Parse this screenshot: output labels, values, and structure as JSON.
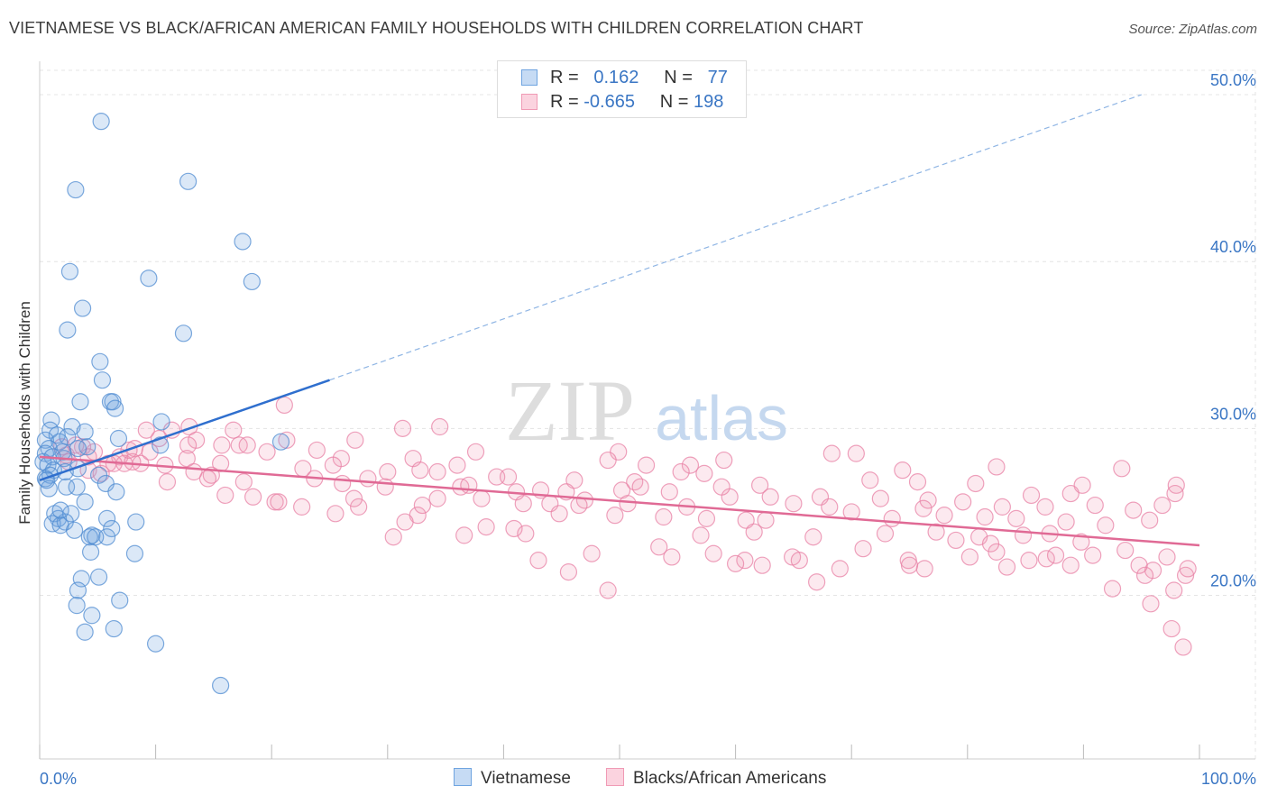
{
  "title": "VIETNAMESE VS BLACK/AFRICAN AMERICAN FAMILY HOUSEHOLDS WITH CHILDREN CORRELATION CHART",
  "source": "Source: ZipAtlas.com",
  "watermark": {
    "zip": "ZIP",
    "atlas": "atlas"
  },
  "legend": {
    "rows": [
      {
        "r_label": "R =",
        "r_value": "0.162",
        "n_label": "N =",
        "n_value": "77",
        "color": "#6fa4e0"
      },
      {
        "r_label": "R =",
        "r_value": "-0.665",
        "n_label": "N =",
        "n_value": "198",
        "color": "#f09ab5"
      }
    ]
  },
  "bottom_legend": {
    "series1": "Vietnamese",
    "series2": "Blacks/African Americans"
  },
  "chart_data": {
    "type": "scatter",
    "ylabel": "Family Households with Children",
    "xlim": [
      0,
      100
    ],
    "ylim": [
      10.2,
      52.0
    ],
    "x_tick_labels": [
      "0.0%",
      "100.0%"
    ],
    "y_ticks": [
      20,
      30,
      40,
      50
    ],
    "y_tick_labels": [
      "20.0%",
      "30.0%",
      "40.0%",
      "50.0%"
    ],
    "grid": true,
    "legend_position": "top-center",
    "colors": {
      "vietnamese": "#6fa4e0",
      "black": "#f09ab5",
      "vietnamese_line": "#2f6fce",
      "black_line": "#e06a95"
    },
    "series": [
      {
        "name": "Vietnamese",
        "trend": {
          "x0": 0,
          "y0": 26.9,
          "x1": 25,
          "y1": 32.9,
          "dashed_to_x": 95,
          "dashed_to_y": 50.0
        },
        "points": [
          [
            5.3,
            48.4
          ],
          [
            3.1,
            44.3
          ],
          [
            12.8,
            44.8
          ],
          [
            17.5,
            41.2
          ],
          [
            2.6,
            39.4
          ],
          [
            9.4,
            39.0
          ],
          [
            18.3,
            38.8
          ],
          [
            3.7,
            37.2
          ],
          [
            2.4,
            35.9
          ],
          [
            12.4,
            35.7
          ],
          [
            5.2,
            34.0
          ],
          [
            5.4,
            32.9
          ],
          [
            3.5,
            31.6
          ],
          [
            6.1,
            31.6
          ],
          [
            6.3,
            31.6
          ],
          [
            6.5,
            31.2
          ],
          [
            1.0,
            30.5
          ],
          [
            10.5,
            30.4
          ],
          [
            2.8,
            30.1
          ],
          [
            0.9,
            29.9
          ],
          [
            3.9,
            29.8
          ],
          [
            1.5,
            29.6
          ],
          [
            2.4,
            29.5
          ],
          [
            6.8,
            29.4
          ],
          [
            0.5,
            29.3
          ],
          [
            1.7,
            29.2
          ],
          [
            10.4,
            29.0
          ],
          [
            20.8,
            29.2
          ],
          [
            4.1,
            28.9
          ],
          [
            0.8,
            28.8
          ],
          [
            3.3,
            28.8
          ],
          [
            2.0,
            28.6
          ],
          [
            0.5,
            28.5
          ],
          [
            1.1,
            28.3
          ],
          [
            2.1,
            28.2
          ],
          [
            0.3,
            28.0
          ],
          [
            0.7,
            27.8
          ],
          [
            3.3,
            27.6
          ],
          [
            1.2,
            27.5
          ],
          [
            2.2,
            27.4
          ],
          [
            5.1,
            27.2
          ],
          [
            0.9,
            27.2
          ],
          [
            0.5,
            27.0
          ],
          [
            5.7,
            26.7
          ],
          [
            2.3,
            26.5
          ],
          [
            3.2,
            26.5
          ],
          [
            6.6,
            26.2
          ],
          [
            0.8,
            26.4
          ],
          [
            3.9,
            25.6
          ],
          [
            1.3,
            24.9
          ],
          [
            2.7,
            24.9
          ],
          [
            5.8,
            24.6
          ],
          [
            1.6,
            24.6
          ],
          [
            1.1,
            24.3
          ],
          [
            2.2,
            24.4
          ],
          [
            8.3,
            24.4
          ],
          [
            1.8,
            24.2
          ],
          [
            6.2,
            24.0
          ],
          [
            3.0,
            23.9
          ],
          [
            4.5,
            23.6
          ],
          [
            4.3,
            23.5
          ],
          [
            5.8,
            23.5
          ],
          [
            4.8,
            23.5
          ],
          [
            4.4,
            22.6
          ],
          [
            8.2,
            22.5
          ],
          [
            5.1,
            21.1
          ],
          [
            3.6,
            21.0
          ],
          [
            3.3,
            20.3
          ],
          [
            6.9,
            19.7
          ],
          [
            3.2,
            19.4
          ],
          [
            4.5,
            18.8
          ],
          [
            3.9,
            17.8
          ],
          [
            6.4,
            18.0
          ],
          [
            10.0,
            17.1
          ],
          [
            15.6,
            14.6
          ],
          [
            1.8,
            25.1
          ],
          [
            0.6,
            26.9
          ]
        ]
      },
      {
        "name": "Blacks/African Americans",
        "trend": {
          "x0": 0,
          "y0": 28.3,
          "x1": 100,
          "y1": 23.0
        },
        "points": [
          [
            12.9,
            30.1
          ],
          [
            11.4,
            29.9
          ],
          [
            9.2,
            29.9
          ],
          [
            16.7,
            29.9
          ],
          [
            34.5,
            30.1
          ],
          [
            13.5,
            29.3
          ],
          [
            10.3,
            29.4
          ],
          [
            21.3,
            29.3
          ],
          [
            27.2,
            29.3
          ],
          [
            15.7,
            29.0
          ],
          [
            17.2,
            29.0
          ],
          [
            17.9,
            29.0
          ],
          [
            12.8,
            29.0
          ],
          [
            8.2,
            28.8
          ],
          [
            3.7,
            28.9
          ],
          [
            4.7,
            28.6
          ],
          [
            19.6,
            28.6
          ],
          [
            23.9,
            28.7
          ],
          [
            37.6,
            28.6
          ],
          [
            49.9,
            28.6
          ],
          [
            68.3,
            28.5
          ],
          [
            70.4,
            28.5
          ],
          [
            2.3,
            28.4
          ],
          [
            4.2,
            28.3
          ],
          [
            6.9,
            28.3
          ],
          [
            12.7,
            28.2
          ],
          [
            26.0,
            28.2
          ],
          [
            32.2,
            28.2
          ],
          [
            49.0,
            28.1
          ],
          [
            59.0,
            28.1
          ],
          [
            2.5,
            28.0
          ],
          [
            7.3,
            27.9
          ],
          [
            8.7,
            27.9
          ],
          [
            15.6,
            27.9
          ],
          [
            25.3,
            27.8
          ],
          [
            36.0,
            27.8
          ],
          [
            52.3,
            27.8
          ],
          [
            56.1,
            27.8
          ],
          [
            82.5,
            27.7
          ],
          [
            93.3,
            27.6
          ],
          [
            4.2,
            27.5
          ],
          [
            13.3,
            27.4
          ],
          [
            30.0,
            27.4
          ],
          [
            32.8,
            27.5
          ],
          [
            34.3,
            27.4
          ],
          [
            55.3,
            27.4
          ],
          [
            57.3,
            27.3
          ],
          [
            74.4,
            27.5
          ],
          [
            5.3,
            27.3
          ],
          [
            14.8,
            27.2
          ],
          [
            23.7,
            27.0
          ],
          [
            28.3,
            27.0
          ],
          [
            39.4,
            27.1
          ],
          [
            40.4,
            27.1
          ],
          [
            46.1,
            26.9
          ],
          [
            51.3,
            26.8
          ],
          [
            62.1,
            26.6
          ],
          [
            71.6,
            26.9
          ],
          [
            75.7,
            26.8
          ],
          [
            80.7,
            26.7
          ],
          [
            89.9,
            26.6
          ],
          [
            98.0,
            26.6
          ],
          [
            11.0,
            26.8
          ],
          [
            17.6,
            26.8
          ],
          [
            26.1,
            26.7
          ],
          [
            29.8,
            26.5
          ],
          [
            36.3,
            26.5
          ],
          [
            37.0,
            26.6
          ],
          [
            41.1,
            26.2
          ],
          [
            43.2,
            26.3
          ],
          [
            45.4,
            26.2
          ],
          [
            50.2,
            26.3
          ],
          [
            54.3,
            26.2
          ],
          [
            59.5,
            25.9
          ],
          [
            63.0,
            25.9
          ],
          [
            67.3,
            25.9
          ],
          [
            72.5,
            25.8
          ],
          [
            76.6,
            25.7
          ],
          [
            85.5,
            26.0
          ],
          [
            88.9,
            26.1
          ],
          [
            97.9,
            26.1
          ],
          [
            20.3,
            25.6
          ],
          [
            22.6,
            25.3
          ],
          [
            27.5,
            25.3
          ],
          [
            34.3,
            25.8
          ],
          [
            38.1,
            25.8
          ],
          [
            41.7,
            25.5
          ],
          [
            44.0,
            25.5
          ],
          [
            47.0,
            25.7
          ],
          [
            50.7,
            25.5
          ],
          [
            55.8,
            25.3
          ],
          [
            65.0,
            25.5
          ],
          [
            68.1,
            25.3
          ],
          [
            76.2,
            25.2
          ],
          [
            79.6,
            25.6
          ],
          [
            83.0,
            25.3
          ],
          [
            86.7,
            25.3
          ],
          [
            91.0,
            25.4
          ],
          [
            94.3,
            25.1
          ],
          [
            96.8,
            25.4
          ],
          [
            25.5,
            24.9
          ],
          [
            32.6,
            24.8
          ],
          [
            44.8,
            24.9
          ],
          [
            49.6,
            24.8
          ],
          [
            53.8,
            24.7
          ],
          [
            57.5,
            24.6
          ],
          [
            60.9,
            24.5
          ],
          [
            62.6,
            24.5
          ],
          [
            73.5,
            24.6
          ],
          [
            78.0,
            24.8
          ],
          [
            81.5,
            24.7
          ],
          [
            84.2,
            24.6
          ],
          [
            88.5,
            24.4
          ],
          [
            91.9,
            24.2
          ],
          [
            95.7,
            24.5
          ],
          [
            38.5,
            24.1
          ],
          [
            40.9,
            24.0
          ],
          [
            57.0,
            23.6
          ],
          [
            61.6,
            23.8
          ],
          [
            66.7,
            23.5
          ],
          [
            72.9,
            23.7
          ],
          [
            77.3,
            23.8
          ],
          [
            81.0,
            23.5
          ],
          [
            84.8,
            23.6
          ],
          [
            87.1,
            23.7
          ],
          [
            89.8,
            23.2
          ],
          [
            30.5,
            23.5
          ],
          [
            41.9,
            23.7
          ],
          [
            71.0,
            22.8
          ],
          [
            82.5,
            22.6
          ],
          [
            90.8,
            22.4
          ],
          [
            93.6,
            22.7
          ],
          [
            54.5,
            22.3
          ],
          [
            60.8,
            22.1
          ],
          [
            64.9,
            22.3
          ],
          [
            74.9,
            22.1
          ],
          [
            80.2,
            22.3
          ],
          [
            86.8,
            22.2
          ],
          [
            97.2,
            22.3
          ],
          [
            47.6,
            22.5
          ],
          [
            58.1,
            22.5
          ],
          [
            62.3,
            21.8
          ],
          [
            69.0,
            21.6
          ],
          [
            76.3,
            21.6
          ],
          [
            83.4,
            21.7
          ],
          [
            88.9,
            21.8
          ],
          [
            96.0,
            21.5
          ],
          [
            43.0,
            22.1
          ],
          [
            65.5,
            22.1
          ],
          [
            95.3,
            21.2
          ],
          [
            98.8,
            21.2
          ],
          [
            67.0,
            20.8
          ],
          [
            45.6,
            21.4
          ],
          [
            49.0,
            20.3
          ],
          [
            99.0,
            21.6
          ],
          [
            97.8,
            20.3
          ],
          [
            95.8,
            19.5
          ],
          [
            97.6,
            18.0
          ],
          [
            98.6,
            16.9
          ],
          [
            58.8,
            26.5
          ],
          [
            14.5,
            27.0
          ],
          [
            31.5,
            24.4
          ],
          [
            33.0,
            25.4
          ],
          [
            16.0,
            26.0
          ],
          [
            18.4,
            25.9
          ],
          [
            22.7,
            27.6
          ],
          [
            27.1,
            25.8
          ],
          [
            9.5,
            28.6
          ],
          [
            1.9,
            28.9
          ],
          [
            3.1,
            29.0
          ],
          [
            6.4,
            27.9
          ],
          [
            8.0,
            28.0
          ],
          [
            20.6,
            25.6
          ],
          [
            7.7,
            28.7
          ],
          [
            36.6,
            23.6
          ],
          [
            53.4,
            22.9
          ],
          [
            46.5,
            25.4
          ],
          [
            51.8,
            26.5
          ],
          [
            70.0,
            25.0
          ],
          [
            75.0,
            21.8
          ],
          [
            79.0,
            23.3
          ],
          [
            82.0,
            23.1
          ],
          [
            85.3,
            22.1
          ],
          [
            87.6,
            22.4
          ],
          [
            92.5,
            20.4
          ],
          [
            94.8,
            21.8
          ],
          [
            5.9,
            27.9
          ],
          [
            21.1,
            31.4
          ],
          [
            31.3,
            30.0
          ],
          [
            10.8,
            27.8
          ],
          [
            60.0,
            21.9
          ]
        ]
      }
    ]
  }
}
